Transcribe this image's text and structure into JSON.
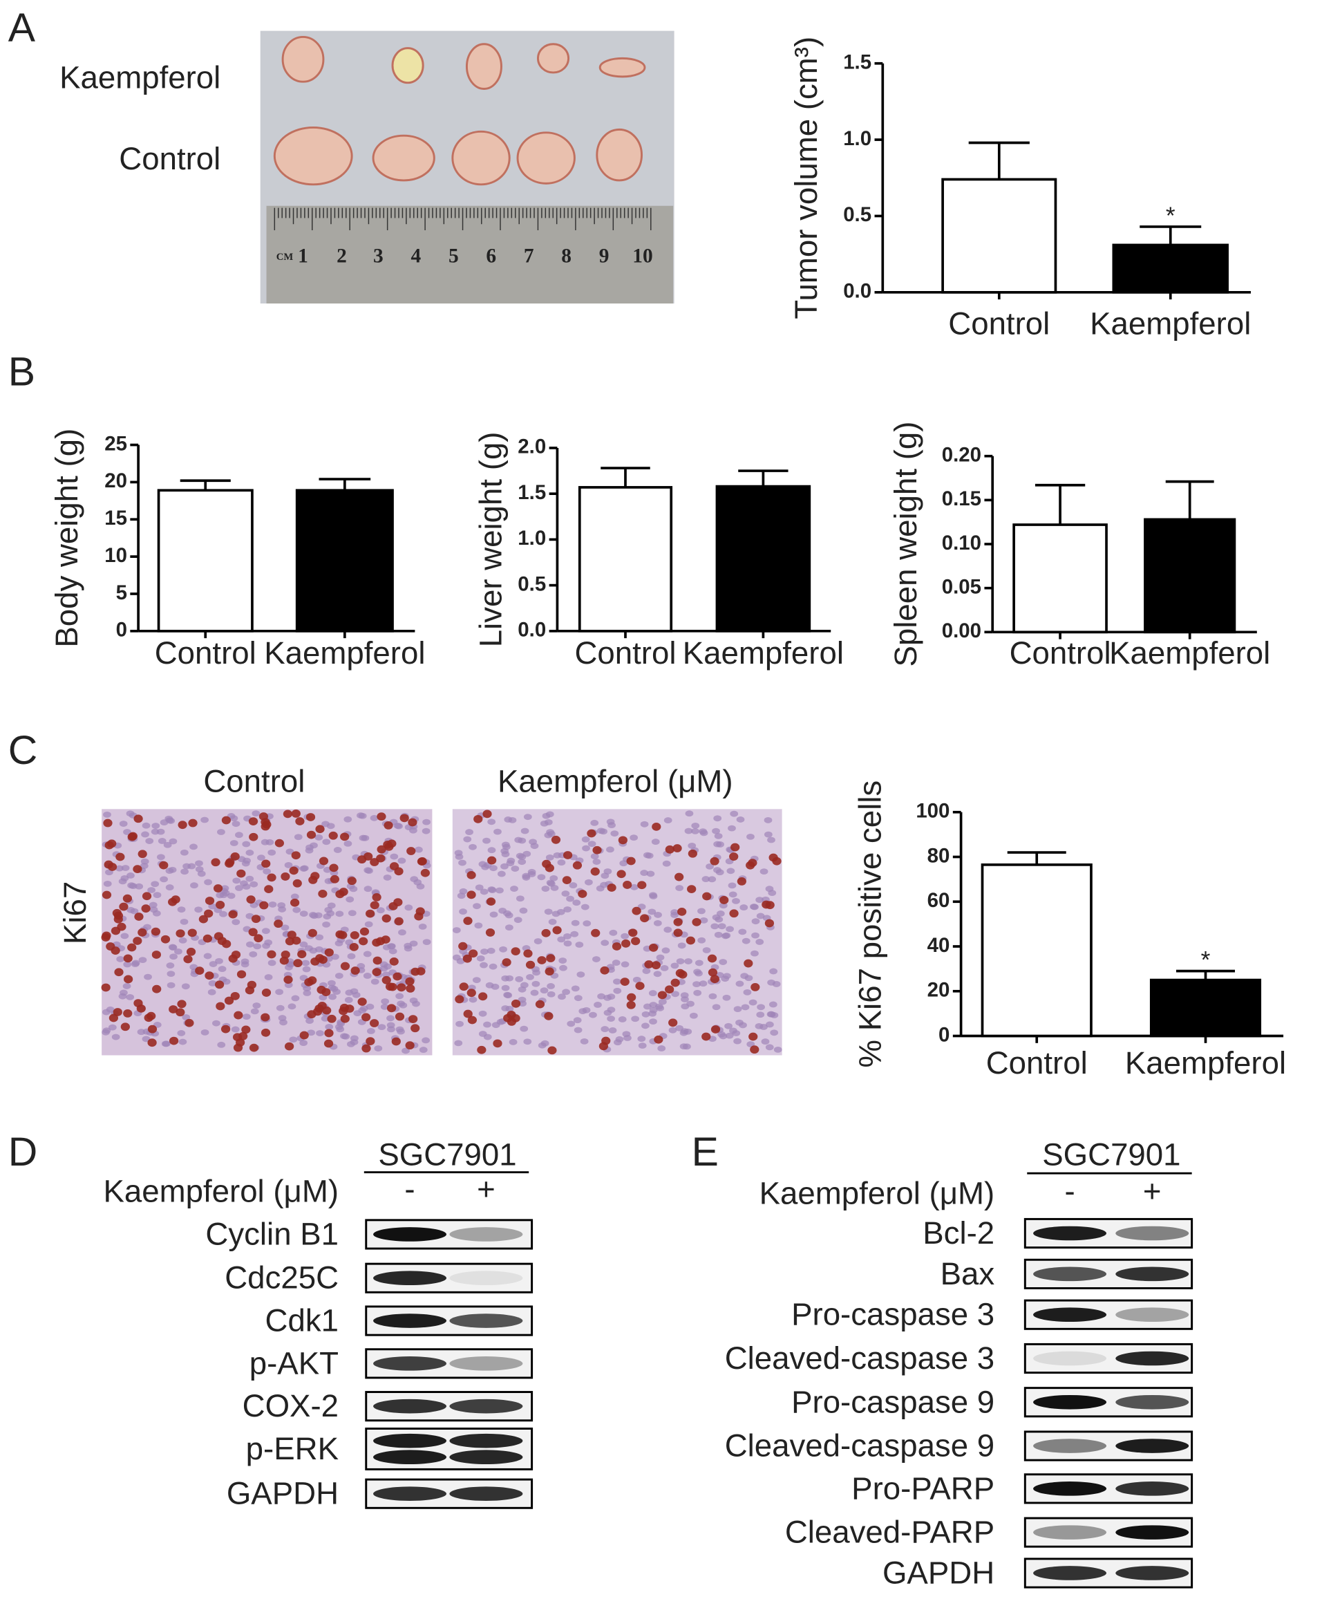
{
  "panel_labels": [
    "A",
    "B",
    "C",
    "D",
    "E"
  ],
  "panel_a": {
    "photo_labels": [
      "Kaempferol",
      "Control"
    ],
    "ruler_labels": [
      "CM",
      "1",
      "2",
      "3",
      "4",
      "5",
      "6",
      "7",
      "8",
      "9",
      "10"
    ]
  },
  "panel_c": {
    "image_labels": [
      "Control",
      "Kaempferol (μM)"
    ],
    "row_label": "Ki67"
  },
  "blots": [
    {
      "title": "SGC7901",
      "treatment_label": "Kaempferol (μM)",
      "lanes": [
        "-",
        "+"
      ],
      "rows": [
        "Cyclin B1",
        "Cdc25C",
        "Cdk1",
        "p-AKT",
        "COX-2",
        "p-ERK",
        "GAPDH"
      ]
    },
    {
      "title": "SGC7901",
      "treatment_label": "Kaempferol (μM)",
      "lanes": [
        "-",
        "+"
      ],
      "rows": [
        "Bcl-2",
        "Bax",
        "Pro-caspase 3",
        "Cleaved-caspase 3",
        "Pro-caspase 9",
        "Cleaved-caspase 9",
        "Pro-PARP",
        "Cleaved-PARP",
        "GAPDH"
      ]
    }
  ],
  "chart_data": [
    {
      "type": "bar",
      "ylabel": "Tumor volume (cm³)",
      "categories": [
        "Control",
        "Kaempferol"
      ],
      "values": [
        0.74,
        0.31
      ],
      "errors": [
        0.24,
        0.12
      ],
      "colors": [
        "#ffffff",
        "#000000"
      ],
      "value_annotations": [
        null,
        "*"
      ],
      "ylim": [
        0,
        1.5
      ],
      "yticks": [
        {
          "value": 0,
          "label": "0.0"
        },
        {
          "value": 0.5,
          "label": "0.5"
        },
        {
          "value": 1,
          "label": "1.0"
        },
        {
          "value": 1.5,
          "label": "1.5"
        }
      ]
    },
    {
      "type": "bar",
      "ylabel": "Body weight (g)",
      "categories": [
        "Control",
        "Kaempferol"
      ],
      "values": [
        18.9,
        18.9
      ],
      "errors": [
        1.3,
        1.5
      ],
      "colors": [
        "#ffffff",
        "#000000"
      ],
      "ylim": [
        0,
        25
      ],
      "yticks": [
        0,
        5,
        10,
        15,
        20,
        25
      ]
    },
    {
      "type": "bar",
      "ylabel": "Liver weight (g)",
      "categories": [
        "Control",
        "Kaempferol"
      ],
      "values": [
        1.57,
        1.58
      ],
      "errors": [
        0.21,
        0.17
      ],
      "colors": [
        "#ffffff",
        "#000000"
      ],
      "ylim": [
        0,
        2
      ],
      "yticks": [
        {
          "value": 0,
          "label": "0.0"
        },
        {
          "value": 0.5,
          "label": "0.5"
        },
        {
          "value": 1,
          "label": "1.0"
        },
        {
          "value": 1.5,
          "label": "1.5"
        },
        {
          "value": 2,
          "label": "2.0"
        }
      ]
    },
    {
      "type": "bar",
      "ylabel": "Spleen weight (g)",
      "categories": [
        "Control",
        "Kaempferol"
      ],
      "values": [
        0.122,
        0.128
      ],
      "errors": [
        0.045,
        0.043
      ],
      "colors": [
        "#ffffff",
        "#000000"
      ],
      "ylim": [
        0,
        0.2
      ],
      "yticks": [
        {
          "value": 0,
          "label": "0.00"
        },
        {
          "value": 0.05,
          "label": "0.05"
        },
        {
          "value": 0.1,
          "label": "0.10"
        },
        {
          "value": 0.15,
          "label": "0.15"
        },
        {
          "value": 0.2,
          "label": "0.20"
        }
      ]
    },
    {
      "type": "bar",
      "ylabel": "% Ki67 positive cells",
      "categories": [
        "Control",
        "Kaempferol"
      ],
      "values": [
        76.5,
        25
      ],
      "errors": [
        5.5,
        4
      ],
      "colors": [
        "#ffffff",
        "#000000"
      ],
      "value_annotations": [
        null,
        "*"
      ],
      "ylim": [
        0,
        100
      ],
      "yticks": [
        0,
        20,
        40,
        60,
        80,
        100
      ]
    }
  ]
}
